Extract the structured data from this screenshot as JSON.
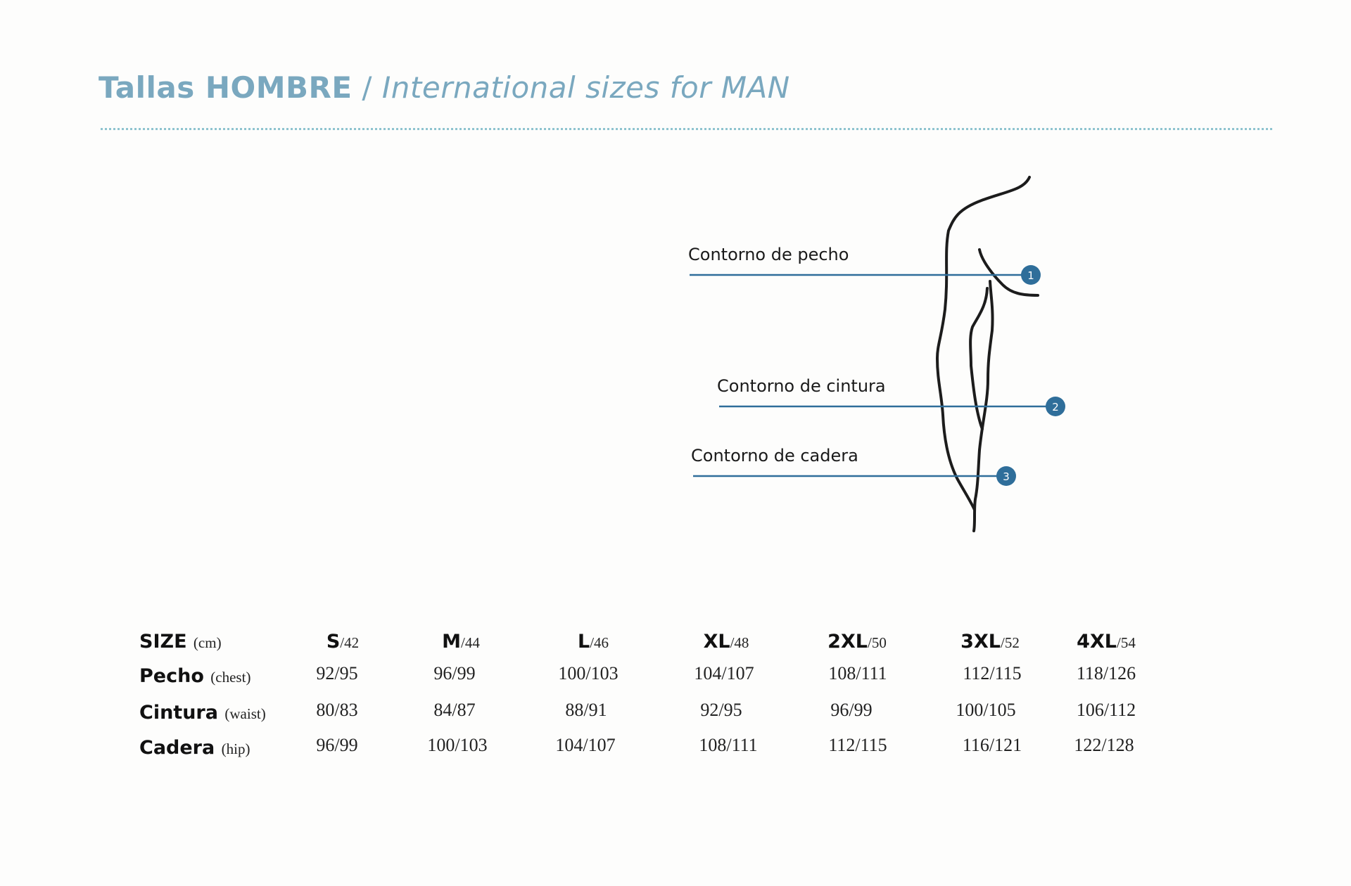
{
  "header": {
    "title_bold": "Tallas HOMBRE",
    "separator": "/",
    "title_italic": "International sizes for MAN"
  },
  "figure": {
    "labels": [
      {
        "text": "Contorno de pecho",
        "marker": "1"
      },
      {
        "text": "Contorno de cintura",
        "marker": "2"
      },
      {
        "text": "Contorno de cadera",
        "marker": "3"
      }
    ],
    "marker_color": "#2f6e9a",
    "line_color": "#2f6e9a"
  },
  "table": {
    "header_label": "SIZE",
    "header_unit": "(cm)",
    "sizes": [
      {
        "main": "S",
        "sub": "/42"
      },
      {
        "main": "M",
        "sub": "/44"
      },
      {
        "main": "L",
        "sub": "/46"
      },
      {
        "main": "XL",
        "sub": "/48"
      },
      {
        "main": "2XL",
        "sub": "/50"
      },
      {
        "main": "3XL",
        "sub": "/52"
      },
      {
        "main": "4XL",
        "sub": "/54"
      }
    ],
    "rows": [
      {
        "label": "Pecho",
        "sub": "(chest)",
        "values": [
          "92/95",
          "96/99",
          "100/103",
          "104/107",
          "108/111",
          "112/115",
          "118/126"
        ]
      },
      {
        "label": "Cintura",
        "sub": "(waist)",
        "values": [
          "80/83",
          "84/87",
          "88/91",
          "92/95",
          "96/99",
          "100/105",
          "106/112"
        ]
      },
      {
        "label": "Cadera",
        "sub": "(hip)",
        "values": [
          "96/99",
          "100/103",
          "104/107",
          "108/111",
          "112/115",
          "116/121",
          "122/128"
        ]
      }
    ]
  },
  "colors": {
    "title": "#7aa8bf",
    "rule": "#8ec3cf",
    "text": "#111111"
  }
}
